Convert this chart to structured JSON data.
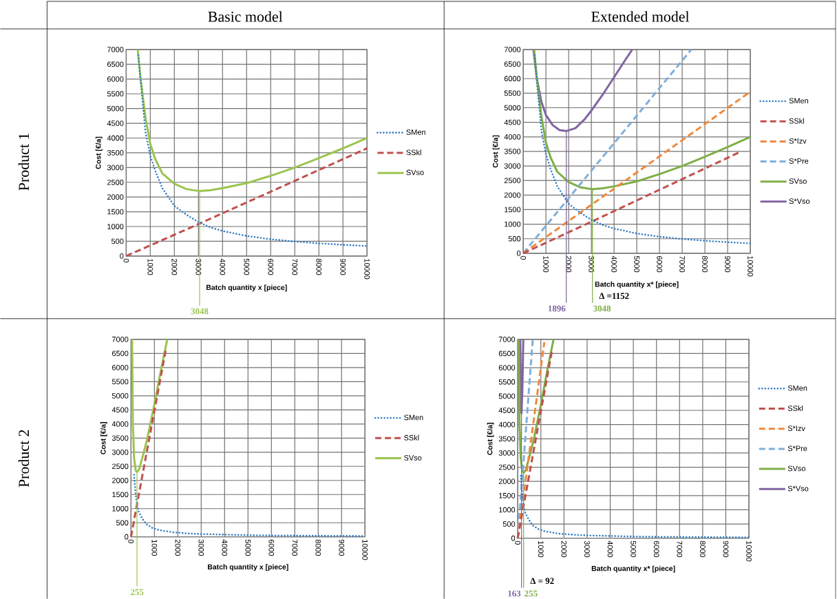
{
  "chart_data": [
    {
      "type": "line",
      "title": "Basic model",
      "annotations": [
        "Product 1",
        {
          "text": "3048",
          "x": 3048,
          "y": 2200
        }
      ],
      "xlabel": "Batch quantity x [piece]",
      "ylabel": "Cost [€/a]",
      "xlim": [
        0,
        10000
      ],
      "ylim": [
        0,
        7000
      ],
      "xticks": [
        0,
        1000,
        2000,
        3000,
        4000,
        5000,
        6000,
        7000,
        8000,
        9000,
        10000
      ],
      "yticks": [
        0,
        500,
        1000,
        1500,
        2000,
        2500,
        3000,
        3500,
        4000,
        4500,
        5000,
        5500,
        6000,
        6500,
        7000
      ],
      "grid": true,
      "legend": "right",
      "series": [
        {
          "name": "SMen",
          "color": "#2e7bc4",
          "line_style": "dotted",
          "x": [
            500,
            800,
            1000,
            1200,
            1500,
            2000,
            2500,
            3000,
            3500,
            4000,
            5000,
            6000,
            7000,
            8000,
            9000,
            10000
          ],
          "values": [
            6800,
            4200,
            3400,
            2900,
            2300,
            1700,
            1400,
            1150,
            970,
            850,
            680,
            570,
            490,
            430,
            380,
            340
          ]
        },
        {
          "name": "SSkl",
          "color": "#c0504d",
          "line_style": "dashed",
          "x": [
            0,
            3048,
            10000
          ],
          "values": [
            0,
            1100,
            3650
          ]
        },
        {
          "name": "SVso",
          "color": "#9bc44e",
          "line_style": "solid",
          "x": [
            480,
            600,
            800,
            1000,
            1200,
            1500,
            2000,
            2500,
            3048,
            3500,
            4000,
            5000,
            6000,
            7000,
            8000,
            9000,
            10000
          ],
          "values": [
            7000,
            6000,
            4700,
            3800,
            3300,
            2800,
            2450,
            2270,
            2200,
            2230,
            2300,
            2470,
            2720,
            3000,
            3320,
            3650,
            4000
          ]
        }
      ]
    },
    {
      "type": "line",
      "title": "Extended model",
      "annotations": [
        "Δ =1152",
        {
          "text": "1896",
          "x": 1896,
          "y": 4200
        },
        {
          "text": "3048",
          "x": 3048,
          "y": 2200
        }
      ],
      "xlabel": "Batch quantity x* [piece]",
      "ylabel": "Cost [€/a]",
      "xlim": [
        0,
        10000
      ],
      "ylim": [
        0,
        7000
      ],
      "xticks": [
        0,
        1000,
        2000,
        3000,
        4000,
        5000,
        6000,
        7000,
        8000,
        9000,
        10000
      ],
      "yticks": [
        0,
        500,
        1000,
        1500,
        2000,
        2500,
        3000,
        3500,
        4000,
        4500,
        5000,
        5500,
        6000,
        6500,
        7000
      ],
      "grid": true,
      "legend": "right",
      "series": [
        {
          "name": "SMen",
          "color": "#2e7bc4",
          "line_style": "dotted",
          "x": [
            500,
            800,
            1000,
            1200,
            1500,
            2000,
            2500,
            3000,
            3500,
            4000,
            5000,
            6000,
            7000,
            8000,
            9000,
            10000
          ],
          "values": [
            6800,
            4200,
            3400,
            2900,
            2300,
            1700,
            1400,
            1150,
            970,
            850,
            680,
            570,
            490,
            430,
            380,
            340
          ]
        },
        {
          "name": "SSkl",
          "color": "#c0504d",
          "line_style": "dashed",
          "x": [
            0,
            3048,
            9600
          ],
          "values": [
            0,
            1100,
            3500
          ]
        },
        {
          "name": "S*Izv",
          "color": "#f0883c",
          "line_style": "dashed",
          "x": [
            0,
            10000
          ],
          "values": [
            0,
            5550
          ]
        },
        {
          "name": "S*Pre",
          "color": "#7eafdc",
          "line_style": "dashed",
          "x": [
            0,
            7400
          ],
          "values": [
            0,
            7000
          ]
        },
        {
          "name": "SVso",
          "color": "#7fae45",
          "line_style": "solid",
          "x": [
            480,
            600,
            800,
            1000,
            1200,
            1500,
            2000,
            2500,
            3048,
            3500,
            4000,
            5000,
            6000,
            7000,
            8000,
            9000,
            10000
          ],
          "values": [
            7000,
            6000,
            4700,
            3800,
            3300,
            2800,
            2450,
            2270,
            2200,
            2230,
            2300,
            2470,
            2720,
            3000,
            3320,
            3650,
            4000
          ]
        },
        {
          "name": "S*Vso",
          "color": "#8064a2",
          "line_style": "solid",
          "x": [
            450,
            600,
            800,
            1000,
            1300,
            1600,
            1896,
            2300,
            2700,
            3000,
            3500,
            4000,
            4500,
            4800
          ],
          "values": [
            7000,
            6000,
            5200,
            4750,
            4400,
            4230,
            4200,
            4300,
            4600,
            4900,
            5450,
            6050,
            6650,
            7000
          ]
        }
      ]
    },
    {
      "type": "line",
      "annotations": [
        "Product 2",
        {
          "text": "255",
          "x": 255,
          "y": 2300
        }
      ],
      "xlabel": "Batch quantity x [piece]",
      "ylabel": "Cost [€/a]",
      "xlim": [
        0,
        10000
      ],
      "ylim": [
        0,
        7000
      ],
      "xticks": [
        0,
        1000,
        2000,
        3000,
        4000,
        5000,
        6000,
        7000,
        8000,
        9000,
        10000
      ],
      "yticks": [
        0,
        500,
        1000,
        1500,
        2000,
        2500,
        3000,
        3500,
        4000,
        4500,
        5000,
        5500,
        6000,
        6500,
        7000
      ],
      "grid": true,
      "legend": "right",
      "series": [
        {
          "name": "SMen",
          "color": "#2e7bc4",
          "line_style": "dotted",
          "x": [
            130,
            180,
            255,
            330,
            480,
            650,
            900,
            1200,
            1800,
            2500,
            3000,
            4000,
            5000,
            6000,
            8000,
            10000
          ],
          "values": [
            2200,
            1650,
            1150,
            890,
            650,
            450,
            320,
            240,
            160,
            120,
            100,
            80,
            60,
            50,
            40,
            30
          ]
        },
        {
          "name": "SSkl",
          "color": "#c0504d",
          "line_style": "dashed",
          "x": [
            0,
            255,
            1480
          ],
          "values": [
            0,
            1150,
            6600
          ]
        },
        {
          "name": "SVso",
          "color": "#9bc44e",
          "line_style": "solid",
          "x": [
            45,
            80,
            130,
            200,
            255,
            350,
            500,
            700,
            1000,
            1300,
            1550
          ],
          "values": [
            7000,
            4000,
            2800,
            2350,
            2300,
            2400,
            2850,
            3500,
            4700,
            6000,
            7000
          ]
        }
      ]
    },
    {
      "type": "line",
      "annotations": [
        "Δ = 92",
        {
          "text": "163",
          "x": 163,
          "y": 4400
        },
        {
          "text": "255",
          "x": 255,
          "y": 2300
        }
      ],
      "xlabel": "Batch quantity x* [piece]",
      "ylabel": "Cost [€/a]",
      "xlim": [
        0,
        10000
      ],
      "ylim": [
        0,
        7000
      ],
      "xticks": [
        0,
        1000,
        2000,
        3000,
        4000,
        5000,
        6000,
        7000,
        8000,
        9000,
        10000
      ],
      "yticks": [
        0,
        500,
        1000,
        1500,
        2000,
        2500,
        3000,
        3500,
        4000,
        4500,
        5000,
        5500,
        6000,
        6500,
        7000
      ],
      "grid": true,
      "legend": "right",
      "series": [
        {
          "name": "SMen",
          "color": "#2e7bc4",
          "line_style": "dotted",
          "x": [
            130,
            180,
            255,
            330,
            480,
            650,
            900,
            1200,
            1800,
            2500,
            3000,
            4000,
            5000,
            6000,
            8000,
            10000
          ],
          "values": [
            2200,
            1650,
            1150,
            890,
            650,
            450,
            320,
            240,
            160,
            120,
            100,
            80,
            60,
            50,
            40,
            30
          ]
        },
        {
          "name": "SSkl",
          "color": "#c0504d",
          "line_style": "dashed",
          "x": [
            0,
            255,
            1480
          ],
          "values": [
            0,
            1150,
            6600
          ]
        },
        {
          "name": "S*Izv",
          "color": "#f0883c",
          "line_style": "dashed",
          "x": [
            0,
            1150
          ],
          "values": [
            0,
            6900
          ]
        },
        {
          "name": "S*Pre",
          "color": "#7eafdc",
          "line_style": "dashed",
          "x": [
            0,
            650
          ],
          "values": [
            0,
            7000
          ]
        },
        {
          "name": "SVso",
          "color": "#7fae45",
          "line_style": "solid",
          "x": [
            45,
            80,
            130,
            200,
            255,
            350,
            500,
            700,
            1000,
            1300,
            1550
          ],
          "values": [
            7000,
            4000,
            2800,
            2350,
            2300,
            2400,
            2850,
            3500,
            4700,
            6000,
            7000
          ]
        },
        {
          "name": "S*Vso",
          "color": "#8064a2",
          "line_style": "solid",
          "x": [
            110,
            130,
            163,
            200,
            240
          ],
          "values": [
            7000,
            5600,
            4400,
            5200,
            7000
          ]
        }
      ]
    }
  ]
}
